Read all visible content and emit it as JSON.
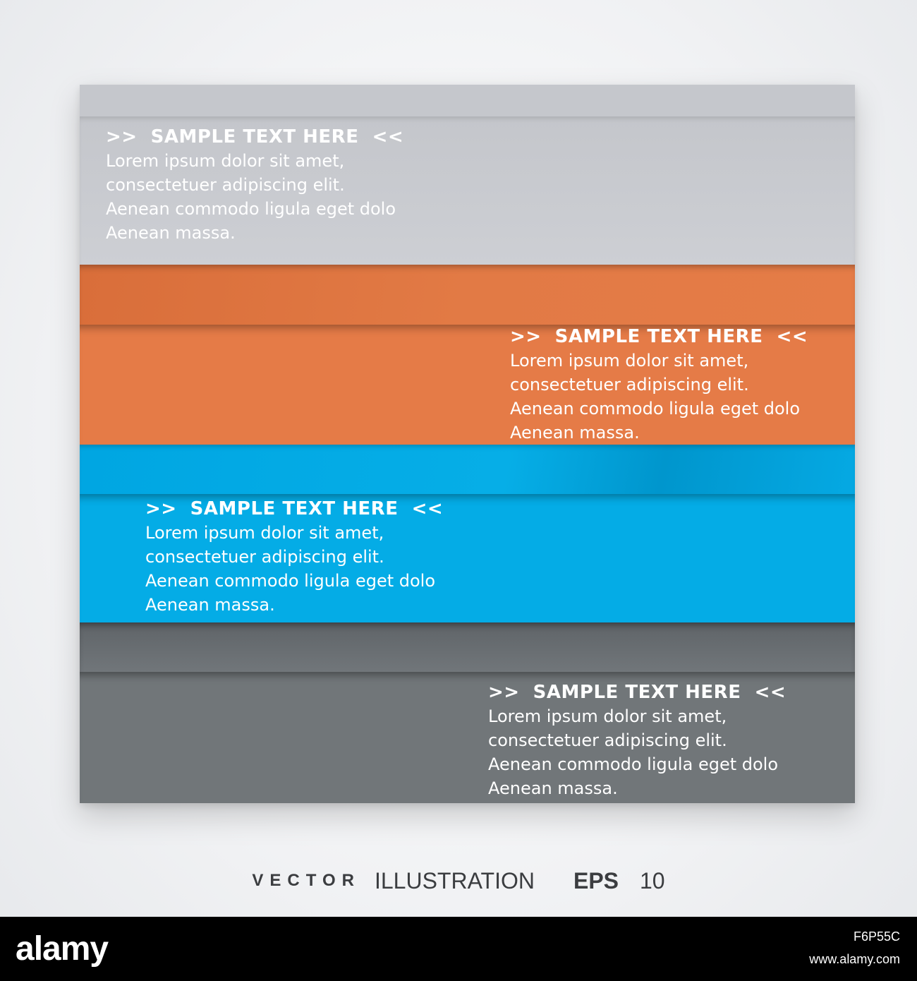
{
  "blocks": [
    {
      "header": ">>  SAMPLE TEXT HERE  <<",
      "lines": [
        "Lorem ipsum dolor sit amet,",
        "consectetuer adipiscing elit.",
        "Aenean commodo ligula eget dolo",
        "Aenean massa."
      ],
      "color": "#c5c7cc"
    },
    {
      "header": ">>  SAMPLE TEXT HERE  <<",
      "lines": [
        "Lorem ipsum dolor sit amet,",
        "consectetuer adipiscing elit.",
        "Aenean commodo ligula eget dolo",
        "Aenean massa."
      ],
      "color": "#e57b47"
    },
    {
      "header": ">>  SAMPLE TEXT HERE  <<",
      "lines": [
        "Lorem ipsum dolor sit amet,",
        "consectetuer adipiscing elit.",
        "Aenean commodo ligula eget dolo",
        "Aenean massa."
      ],
      "color": "#04ace6"
    },
    {
      "header": ">>  SAMPLE TEXT HERE  <<",
      "lines": [
        "Lorem ipsum dolor sit amet,",
        "consectetuer adipiscing elit.",
        "Aenean commodo ligula eget dolo",
        "Aenean massa."
      ],
      "color": "#717679"
    }
  ],
  "caption": {
    "vector": "VECTOR",
    "illustration": "ILLUSTRATION",
    "eps": "EPS",
    "number": "10"
  },
  "watermark": {
    "logo": "alamy",
    "image_id": "F6P55C",
    "url": "www.alamy.com"
  }
}
